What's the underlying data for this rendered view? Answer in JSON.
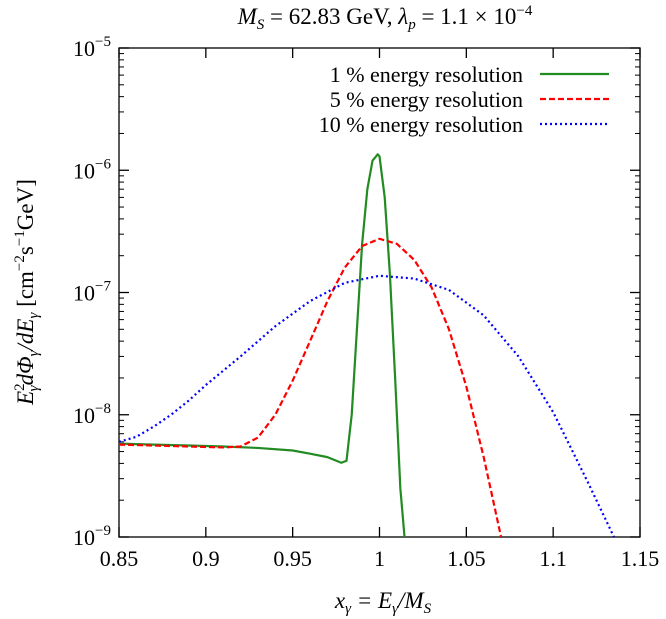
{
  "chart_data": {
    "type": "line",
    "title": {
      "m_symbol": "M",
      "m_sub": "S",
      "m_value": " = 62.83 GeV, ",
      "lambda_symbol": "λ",
      "lambda_sub": "p",
      "lambda_value": " = 1.1 × 10",
      "lambda_exp": "−4"
    },
    "xlabel": {
      "lhs": "x",
      "lhs_sub": "γ",
      "eq": " = E",
      "e_sub": "γ",
      "slash": "/M",
      "m_sub": "S"
    },
    "ylabel": {
      "e": "E",
      "e_sup": "2",
      "e_sub": "γ",
      "mid": "dΦ",
      "phi_sub": "γ",
      "div": "/dE",
      "de_sub": "γ",
      "units_a": " [cm",
      "cm_exp": "−2",
      "units_b": "s",
      "s_exp": "−1",
      "units_c": "GeV]"
    },
    "xlim": [
      0.85,
      1.15
    ],
    "ylim": [
      1e-09,
      1e-05
    ],
    "yscale": "log",
    "grid": false,
    "legend_position": "top-right",
    "x_ticks": [
      {
        "value": 0.85,
        "label": "0.85"
      },
      {
        "value": 0.9,
        "label": "0.9"
      },
      {
        "value": 0.95,
        "label": "0.95"
      },
      {
        "value": 1.0,
        "label": "1"
      },
      {
        "value": 1.05,
        "label": "1.05"
      },
      {
        "value": 1.1,
        "label": "1.1"
      },
      {
        "value": 1.15,
        "label": "1.15"
      }
    ],
    "y_ticks": [
      {
        "value": 1e-09,
        "base": "10",
        "exp": "−9"
      },
      {
        "value": 1e-08,
        "base": "10",
        "exp": "−8"
      },
      {
        "value": 1e-07,
        "base": "10",
        "exp": "−7"
      },
      {
        "value": 1e-06,
        "base": "10",
        "exp": "−6"
      },
      {
        "value": 1e-05,
        "base": "10",
        "exp": "−5"
      }
    ],
    "series": [
      {
        "name": "1 % energy resolution",
        "color": "#228b22",
        "dash": "solid",
        "x": [
          0.85,
          0.87,
          0.89,
          0.91,
          0.93,
          0.95,
          0.96,
          0.97,
          0.978,
          0.981,
          0.984,
          0.987,
          0.99,
          0.993,
          0.996,
          0.999,
          1.0,
          1.003,
          1.006,
          1.009,
          1.012,
          1.015
        ],
        "y": [
          5.8e-09,
          5.7e-09,
          5.6e-09,
          5.5e-09,
          5.35e-09,
          5.1e-09,
          4.8e-09,
          4.5e-09,
          4.05e-09,
          4.2e-09,
          1e-08,
          5e-08,
          2.5e-07,
          7e-07,
          1.2e-06,
          1.35e-06,
          1.3e-06,
          6e-07,
          1.4e-07,
          2e-08,
          2.5e-09,
          8e-10
        ]
      },
      {
        "name": "5 % energy resolution",
        "color": "#ff0000",
        "dash": "dashed",
        "x": [
          0.85,
          0.87,
          0.89,
          0.91,
          0.92,
          0.93,
          0.94,
          0.95,
          0.96,
          0.97,
          0.98,
          0.99,
          1.0,
          1.01,
          1.02,
          1.03,
          1.04,
          1.05,
          1.06,
          1.07
        ],
        "y": [
          5.7e-09,
          5.6e-09,
          5.5e-09,
          5.4e-09,
          5.5e-09,
          6.5e-09,
          1e-08,
          1.9e-08,
          4e-08,
          8.5e-08,
          1.6e-07,
          2.4e-07,
          2.75e-07,
          2.5e-07,
          1.85e-07,
          1.1e-07,
          5e-08,
          1.7e-08,
          4.5e-09,
          1e-09
        ]
      },
      {
        "name": "10 % energy resolution",
        "color": "#0000ff",
        "dash": "dotted",
        "x": [
          0.85,
          0.86,
          0.87,
          0.88,
          0.89,
          0.9,
          0.92,
          0.94,
          0.96,
          0.98,
          1.0,
          1.02,
          1.04,
          1.06,
          1.08,
          1.1,
          1.12,
          1.135
        ],
        "y": [
          6e-09,
          6.6e-09,
          8e-09,
          1e-08,
          1.3e-08,
          1.75e-08,
          3e-08,
          5.3e-08,
          8.5e-08,
          1.2e-07,
          1.37e-07,
          1.3e-07,
          1.05e-07,
          6.5e-08,
          3e-08,
          1.05e-08,
          2.8e-09,
          1e-09
        ]
      }
    ]
  }
}
